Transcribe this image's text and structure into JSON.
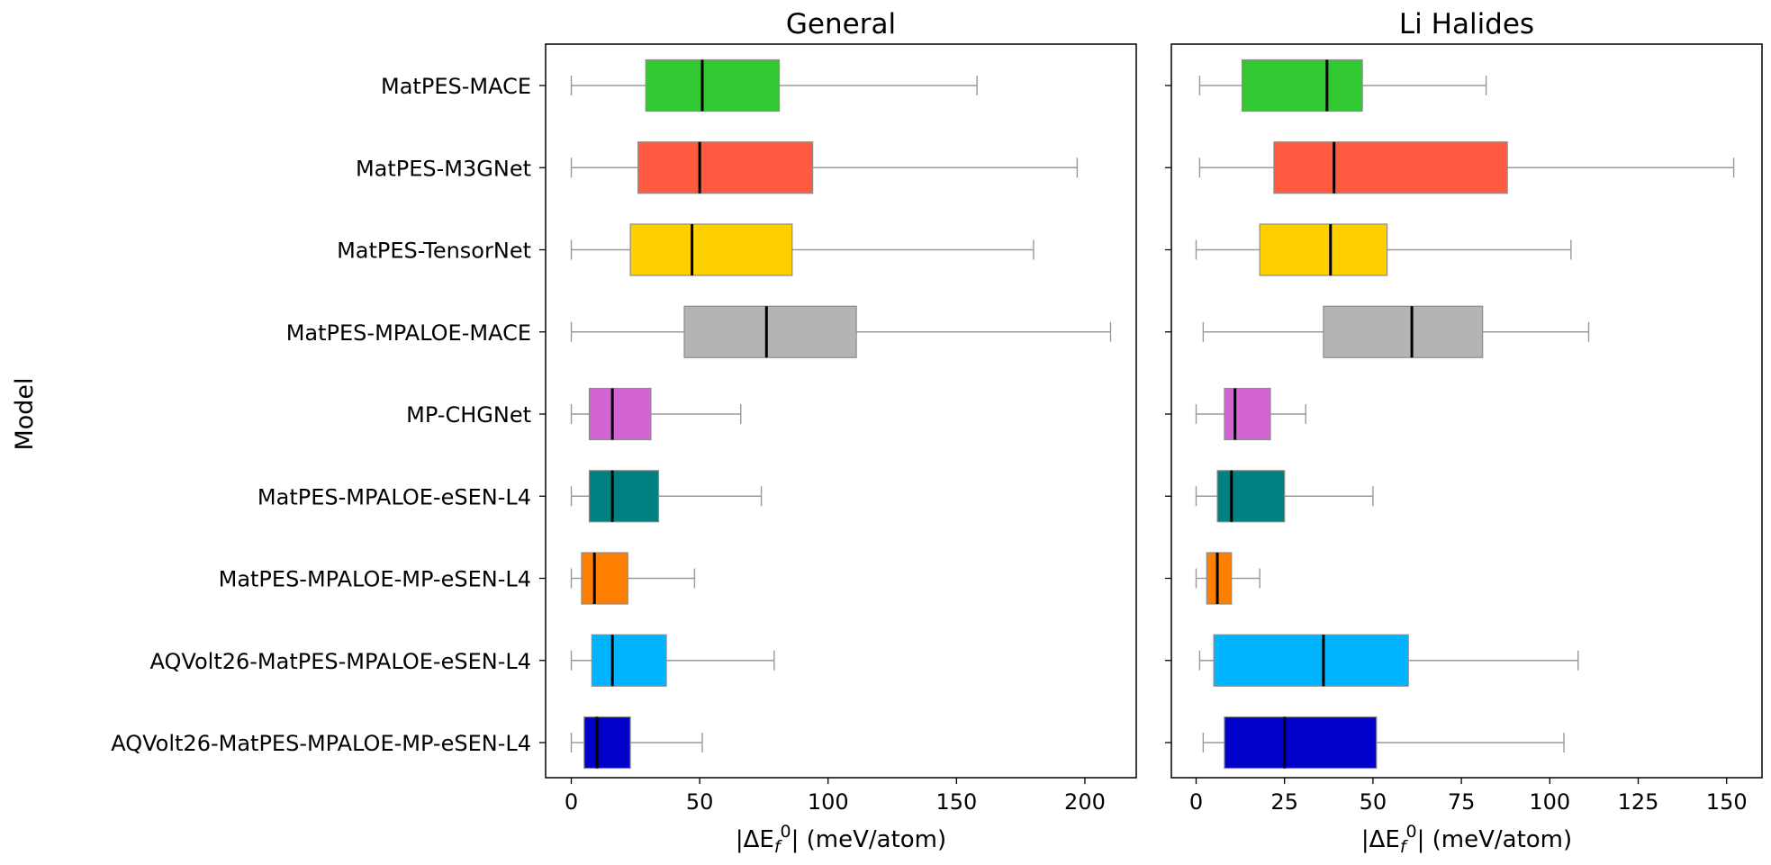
{
  "chart_data": {
    "type": "boxplot",
    "ylabel": "Model",
    "categories": [
      "MatPES-MACE",
      "MatPES-M3GNet",
      "MatPES-TensorNet",
      "MatPES-MPALOE-MACE",
      "MP-CHGNet",
      "MatPES-MPALOE-eSEN-L4",
      "MatPES-MPALOE-MP-eSEN-L4",
      "AQVolt26-MatPES-MPALOE-eSEN-L4",
      "AQVolt26-MatPES-MPALOE-MP-eSEN-L4"
    ],
    "colors": [
      "#32c832",
      "#ff5a40",
      "#ffd000",
      "#b4b4b4",
      "#d464d4",
      "#008080",
      "#ff8000",
      "#00b4ff",
      "#0000c8"
    ],
    "panels": [
      {
        "title": "General",
        "xlabel": {
          "pre": "|ΔE",
          "sub": "f",
          "sup": "0",
          "post": "| (meV/atom)"
        },
        "xlim": [
          -10,
          220
        ],
        "xticks": [
          0,
          50,
          100,
          150,
          200
        ],
        "boxes": [
          {
            "whislo": 0,
            "q1": 29,
            "med": 51,
            "q3": 81,
            "whishi": 158
          },
          {
            "whislo": 0,
            "q1": 26,
            "med": 50,
            "q3": 94,
            "whishi": 197
          },
          {
            "whislo": 0,
            "q1": 23,
            "med": 47,
            "q3": 86,
            "whishi": 180
          },
          {
            "whislo": 0,
            "q1": 44,
            "med": 76,
            "q3": 111,
            "whishi": 210
          },
          {
            "whislo": 0,
            "q1": 7,
            "med": 16,
            "q3": 31,
            "whishi": 66
          },
          {
            "whislo": 0,
            "q1": 7,
            "med": 16,
            "q3": 34,
            "whishi": 74
          },
          {
            "whislo": 0,
            "q1": 4,
            "med": 9,
            "q3": 22,
            "whishi": 48
          },
          {
            "whislo": 0,
            "q1": 8,
            "med": 16,
            "q3": 37,
            "whishi": 79
          },
          {
            "whislo": 0,
            "q1": 5,
            "med": 10,
            "q3": 23,
            "whishi": 51
          }
        ]
      },
      {
        "title": "Li Halides",
        "xlabel": {
          "pre": "|ΔE",
          "sub": "f",
          "sup": "0",
          "post": "| (meV/atom)"
        },
        "xlim": [
          -7,
          160
        ],
        "xticks": [
          0,
          25,
          50,
          75,
          100,
          125,
          150
        ],
        "boxes": [
          {
            "whislo": 1,
            "q1": 13,
            "med": 37,
            "q3": 47,
            "whishi": 82
          },
          {
            "whislo": 1,
            "q1": 22,
            "med": 39,
            "q3": 88,
            "whishi": 152
          },
          {
            "whislo": 0,
            "q1": 18,
            "med": 38,
            "q3": 54,
            "whishi": 106
          },
          {
            "whislo": 2,
            "q1": 36,
            "med": 61,
            "q3": 81,
            "whishi": 111
          },
          {
            "whislo": 0,
            "q1": 8,
            "med": 11,
            "q3": 21,
            "whishi": 31
          },
          {
            "whislo": 0,
            "q1": 6,
            "med": 10,
            "q3": 25,
            "whishi": 50
          },
          {
            "whislo": 0,
            "q1": 3,
            "med": 6,
            "q3": 10,
            "whishi": 18
          },
          {
            "whislo": 1,
            "q1": 5,
            "med": 36,
            "q3": 60,
            "whishi": 108
          },
          {
            "whislo": 2,
            "q1": 8,
            "med": 25,
            "q3": 51,
            "whishi": 104
          }
        ]
      }
    ]
  }
}
